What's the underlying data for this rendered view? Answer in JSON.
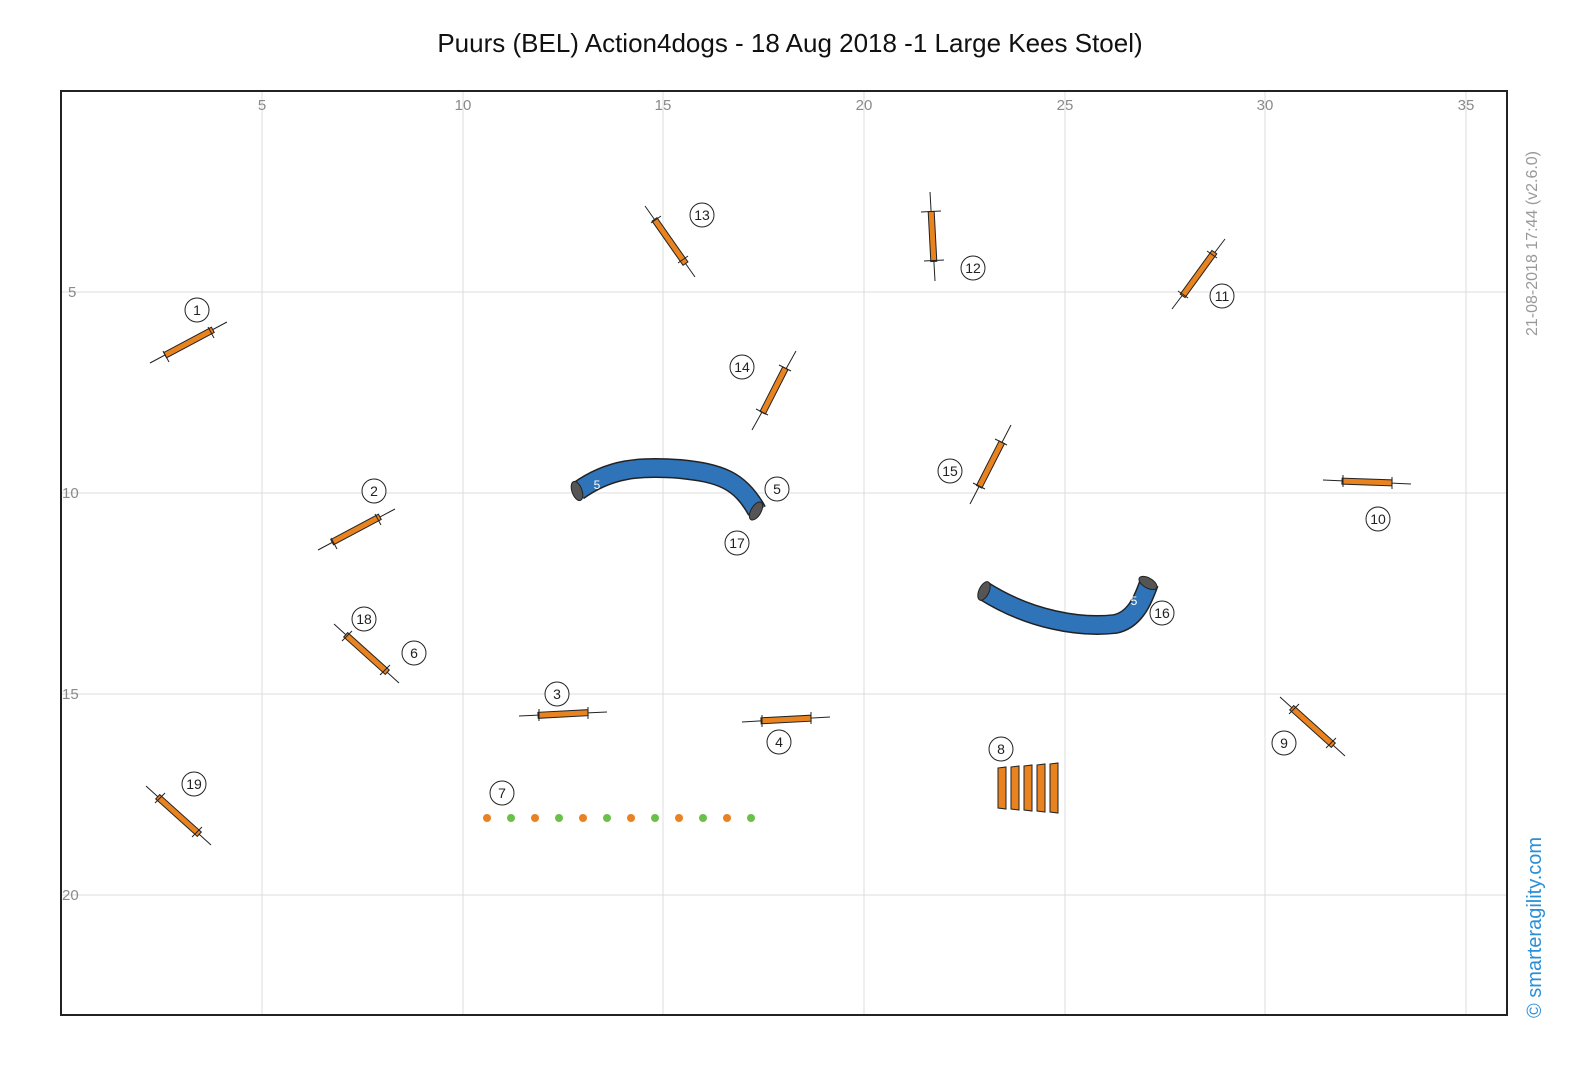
{
  "title": "Puurs (BEL) Action4dogs - 18 Aug 2018 -1 Large Kees Stoel)",
  "timestamp": "21-08-2018 17:44   (v2.6.0)",
  "brand": "© smarteragility.com",
  "axes": {
    "x_ticks": [
      "5",
      "10",
      "15",
      "20",
      "25",
      "30",
      "35"
    ],
    "y_ticks": [
      "5",
      "10",
      "15",
      "20"
    ]
  },
  "colors": {
    "jump_bar": "#e8831f",
    "tunnel": "#2f74b8",
    "weave_orange": "#e8831f",
    "weave_green": "#6cc04a",
    "grid": "#dcdcdc",
    "frame": "#222222",
    "brand": "#2b8fd6"
  },
  "obstacles": {
    "jumps": [
      {
        "labels": [
          "1"
        ]
      },
      {
        "labels": [
          "2"
        ]
      },
      {
        "labels": [
          "3"
        ]
      },
      {
        "labels": [
          "4"
        ]
      },
      {
        "labels": [
          "18",
          "6"
        ]
      },
      {
        "labels": [
          "9"
        ]
      },
      {
        "labels": [
          "10"
        ]
      },
      {
        "labels": [
          "11"
        ]
      },
      {
        "labels": [
          "12"
        ]
      },
      {
        "labels": [
          "13"
        ]
      },
      {
        "labels": [
          "14"
        ]
      },
      {
        "labels": [
          "15"
        ]
      },
      {
        "labels": [
          "19"
        ]
      }
    ],
    "tunnels": [
      {
        "length": "5",
        "labels": [
          "5",
          "17"
        ]
      },
      {
        "length": "5",
        "labels": [
          "16"
        ]
      }
    ],
    "weave": {
      "label": "7",
      "poles": 12
    },
    "wall": {
      "label": "8",
      "icon": "panel-wall-icon"
    }
  }
}
